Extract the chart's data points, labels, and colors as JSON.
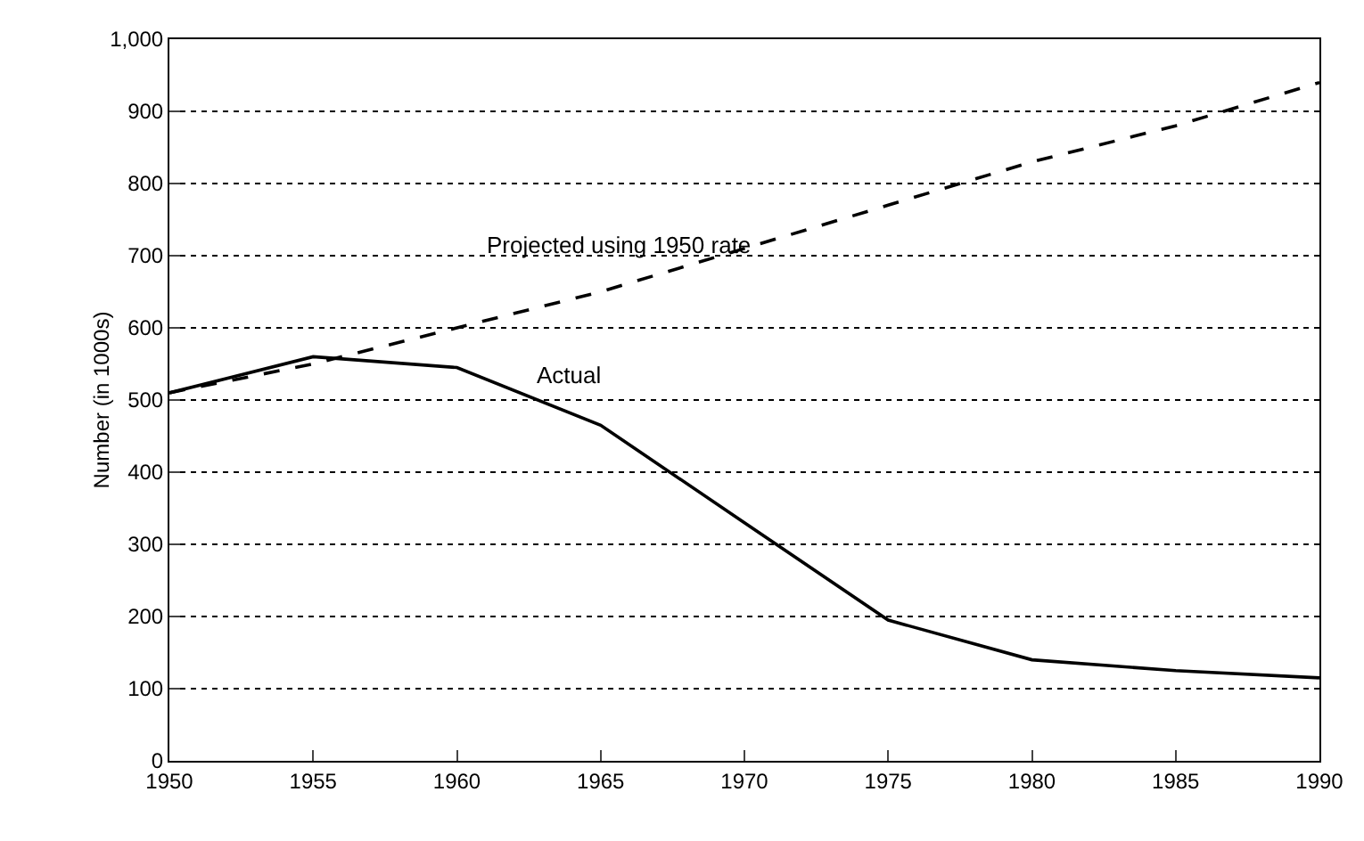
{
  "chart_data": {
    "type": "line",
    "ylabel": "Number (in 1000s)",
    "x": [
      1950,
      1955,
      1960,
      1965,
      1970,
      1975,
      1980,
      1985,
      1990
    ],
    "series": [
      {
        "name": "Projected using 1950 rate",
        "color": "#000000",
        "line_style": "dashed",
        "values": [
          510,
          550,
          600,
          650,
          710,
          770,
          830,
          880,
          940
        ]
      },
      {
        "name": "Actual",
        "color": "#000000",
        "line_style": "solid",
        "values": [
          510,
          560,
          545,
          465,
          330,
          195,
          140,
          125,
          115
        ]
      }
    ],
    "xlim": [
      1950,
      1990
    ],
    "xticks": [
      1950,
      1955,
      1960,
      1965,
      1970,
      1975,
      1980,
      1985,
      1990
    ],
    "ylim": [
      0,
      1000
    ],
    "yticks": [
      0,
      100,
      200,
      300,
      400,
      500,
      600,
      700,
      800,
      900,
      {
        "value": 1000,
        "label": "1,000"
      }
    ],
    "grid": "y",
    "legend": false,
    "marker": "none"
  }
}
